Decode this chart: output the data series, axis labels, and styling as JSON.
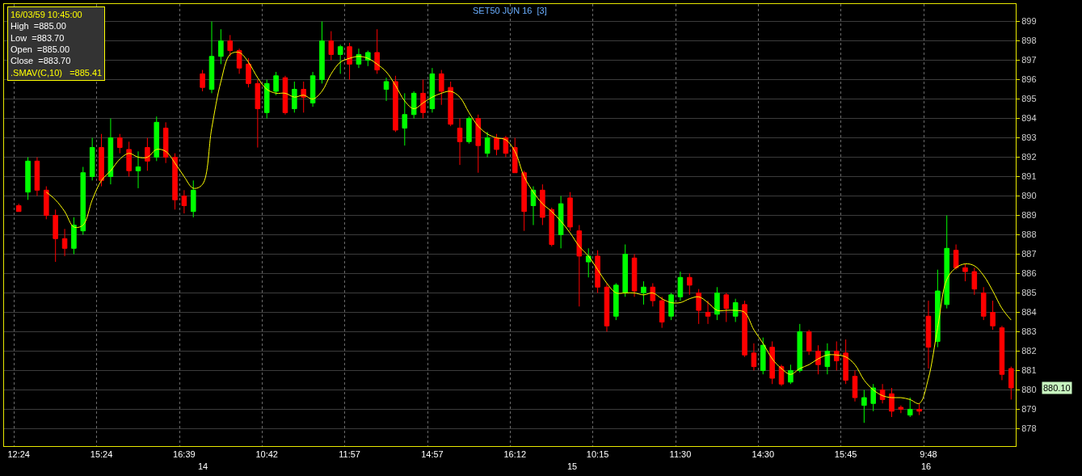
{
  "chart_data": {
    "type": "candlestick",
    "title": "SET50 JUN 16  [3]",
    "categories": [
      "12:24",
      null,
      null,
      null,
      null,
      null,
      null,
      null,
      null,
      "15:24",
      null,
      null,
      null,
      null,
      null,
      null,
      null,
      null,
      "16:39",
      null,
      null,
      null,
      null,
      null,
      null,
      null,
      null,
      "10:42",
      null,
      null,
      null,
      null,
      null,
      null,
      null,
      null,
      "11:57",
      null,
      null,
      null,
      null,
      null,
      null,
      null,
      null,
      "14:57",
      null,
      null,
      null,
      null,
      null,
      null,
      null,
      null,
      "16:12",
      null,
      null,
      null,
      null,
      null,
      null,
      null,
      null,
      "10:15",
      null,
      null,
      null,
      null,
      null,
      null,
      null,
      null,
      "11:30",
      null,
      null,
      null,
      null,
      null,
      null,
      null,
      null,
      "14:30",
      null,
      null,
      null,
      null,
      null,
      null,
      null,
      null,
      "15:45",
      null,
      null,
      null,
      null,
      null,
      null,
      null,
      null,
      "9:48",
      null,
      null,
      null,
      null,
      null,
      null,
      null,
      null,
      null
    ],
    "ohlc": [
      [
        889.5,
        889.6,
        889.2,
        889.2
      ],
      [
        890.2,
        892,
        889.8,
        891.8
      ],
      [
        891.8,
        892,
        890,
        890.3
      ],
      [
        890.3,
        890.5,
        888.8,
        889
      ],
      [
        889,
        889.3,
        886.6,
        887.8
      ],
      [
        887.8,
        888.3,
        886.9,
        887.3
      ],
      [
        887.3,
        888.9,
        887,
        888.5
      ],
      [
        888.2,
        891.5,
        888,
        891.2
      ],
      [
        891,
        893,
        890.8,
        892.5
      ],
      [
        892.5,
        893.2,
        890.5,
        890.8
      ],
      [
        891,
        894,
        890.6,
        893
      ],
      [
        893,
        893.2,
        892.2,
        892.5
      ],
      [
        892.4,
        892.8,
        891,
        891.3
      ],
      [
        891.3,
        892.3,
        890.4,
        891.5
      ],
      [
        892.5,
        893,
        891.3,
        891.8
      ],
      [
        892,
        894.1,
        891.8,
        893.8
      ],
      [
        893.5,
        893.8,
        891.7,
        892
      ],
      [
        892,
        892.2,
        889.3,
        889.8
      ],
      [
        890,
        890.3,
        889.1,
        889.5
      ],
      [
        889.2,
        890.8,
        888.9,
        890.3
      ],
      [
        896.3,
        896.5,
        895.4,
        895.6
      ],
      [
        895.5,
        899,
        895.3,
        897.2
      ],
      [
        897.2,
        898.6,
        896.8,
        898
      ],
      [
        898,
        898.3,
        897.2,
        897.5
      ],
      [
        897.5,
        897.6,
        896.3,
        896.6
      ],
      [
        896.8,
        897.1,
        895.6,
        895.8
      ],
      [
        895.8,
        896,
        892.5,
        894.5
      ],
      [
        894.3,
        896,
        894,
        895.8
      ],
      [
        895.4,
        896.4,
        895.2,
        896.2
      ],
      [
        896.1,
        896.2,
        894.2,
        894.3
      ],
      [
        894.5,
        895.9,
        894.3,
        895.5
      ],
      [
        895.5,
        895.9,
        894.3,
        895.1
      ],
      [
        894.8,
        896.4,
        894.6,
        896.2
      ],
      [
        896,
        899,
        895.8,
        898
      ],
      [
        898,
        898.5,
        897,
        897.3
      ],
      [
        897.3,
        897.8,
        896.3,
        897.7
      ],
      [
        897.7,
        897.9,
        896,
        896.8
      ],
      [
        896.8,
        897.6,
        896.6,
        897.3
      ],
      [
        897,
        897.5,
        896.7,
        897.4
      ],
      [
        897.4,
        898.6,
        896.3,
        896.5
      ],
      [
        895.5,
        896.1,
        894.9,
        895.9
      ],
      [
        895.9,
        896.2,
        893.3,
        893.4
      ],
      [
        893.5,
        895.3,
        892.6,
        894.2
      ],
      [
        894.2,
        895.4,
        894,
        895.3
      ],
      [
        895.3,
        896,
        894,
        894.3
      ],
      [
        894.5,
        896.6,
        894.3,
        896.3
      ],
      [
        896.3,
        896.5,
        894.7,
        895.4
      ],
      [
        895.6,
        895.9,
        893.6,
        893.7
      ],
      [
        893.5,
        894,
        891.6,
        892.8
      ],
      [
        892.8,
        894.1,
        892.7,
        894
      ],
      [
        894,
        894.2,
        891.2,
        892.6
      ],
      [
        892.2,
        893.3,
        892,
        893
      ],
      [
        893,
        893.2,
        892.1,
        892.4
      ],
      [
        893,
        893.1,
        892,
        892.2
      ],
      [
        892.5,
        893,
        891.2,
        891.2
      ],
      [
        891.2,
        891.3,
        888.2,
        889.2
      ],
      [
        889.5,
        890.5,
        888.5,
        890.3
      ],
      [
        890.3,
        890.6,
        888.5,
        888.9
      ],
      [
        889.3,
        889.4,
        887.4,
        887.5
      ],
      [
        888,
        890,
        887.3,
        889.6
      ],
      [
        889.9,
        890.2,
        888.2,
        888.4
      ],
      [
        888.2,
        888.5,
        884.3,
        886.9
      ],
      [
        886.6,
        887.3,
        885.8,
        886.9
      ],
      [
        886.9,
        887.2,
        885,
        885.3
      ],
      [
        885.3,
        885.5,
        883,
        883.3
      ],
      [
        883.8,
        885.5,
        883.6,
        885.4
      ],
      [
        885,
        887.5,
        884.8,
        887
      ],
      [
        886.8,
        887,
        884.8,
        885.1
      ],
      [
        885,
        885.6,
        884.4,
        885.3
      ],
      [
        885.3,
        885.5,
        884.3,
        884.6
      ],
      [
        884.6,
        884.8,
        883.2,
        883.5
      ],
      [
        883.8,
        885,
        883.6,
        884.9
      ],
      [
        884.8,
        886.1,
        884.6,
        885.8
      ],
      [
        885.8,
        886,
        884.9,
        885.4
      ],
      [
        885,
        885.2,
        883.4,
        884.1
      ],
      [
        884,
        884.6,
        883.4,
        883.8
      ],
      [
        883.9,
        885.3,
        883.6,
        885
      ],
      [
        884.9,
        885,
        883.5,
        884.2
      ],
      [
        883.8,
        884.7,
        883.5,
        884.5
      ],
      [
        884.4,
        884.6,
        881.7,
        881.8
      ],
      [
        881.9,
        882.4,
        881,
        881.2
      ],
      [
        881,
        882.7,
        880.8,
        882.3
      ],
      [
        882.2,
        882.5,
        880.3,
        880.6
      ],
      [
        881.2,
        881.3,
        880.2,
        880.3
      ],
      [
        880.4,
        881.3,
        880.3,
        881
      ],
      [
        881,
        883.4,
        880.9,
        883
      ],
      [
        883,
        883.1,
        881.8,
        882
      ],
      [
        882,
        882.3,
        880.8,
        881.3
      ],
      [
        881.2,
        882.4,
        880.8,
        882
      ],
      [
        882,
        882.5,
        881,
        881.5
      ],
      [
        881.9,
        882.6,
        880.3,
        880.5
      ],
      [
        880.7,
        881,
        879.4,
        879.6
      ],
      [
        879.2,
        880,
        878.3,
        879.6
      ],
      [
        879.3,
        880.3,
        878.9,
        880.1
      ],
      [
        880,
        880.3,
        879.3,
        879.5
      ],
      [
        879.8,
        880.1,
        878.6,
        878.9
      ],
      [
        879.1,
        879.2,
        878.8,
        879
      ],
      [
        878.7,
        879.6,
        878.6,
        879
      ],
      [
        879,
        879.3,
        878.7,
        878.9
      ],
      [
        883.8,
        884.6,
        881.1,
        882.2
      ],
      [
        882.5,
        886.2,
        882.2,
        885.1
      ],
      [
        884.4,
        889,
        884.2,
        887.3
      ],
      [
        887.2,
        887.5,
        886.2,
        886.3
      ],
      [
        886.3,
        886.5,
        885.6,
        886.1
      ],
      [
        886.1,
        886.3,
        884.9,
        885.2
      ],
      [
        885,
        885.3,
        883.6,
        883.8
      ],
      [
        884,
        884.6,
        883.1,
        883.3
      ],
      [
        883.2,
        883.3,
        880.5,
        880.8
      ],
      [
        881.1,
        881.2,
        879.5,
        880.1
      ]
    ],
    "colors": [
      "#ff0000",
      "#00ff00",
      "#ff0000",
      "#ff0000",
      "#ff0000",
      "#ff0000",
      "#00ff00",
      "#00ff00",
      "#00ff00",
      "#ff0000",
      "#00ff00",
      "#ff0000",
      "#ff0000",
      "#00ff00",
      "#ff0000",
      "#00ff00",
      "#ff0000",
      "#ff0000",
      "#ff0000",
      "#00ff00",
      "#ff0000",
      "#00ff00",
      "#00ff00",
      "#ff0000",
      "#ff0000",
      "#ff0000",
      "#ff0000",
      "#00ff00",
      "#00ff00",
      "#ff0000",
      "#00ff00",
      "#ff0000",
      "#00ff00",
      "#00ff00",
      "#ff0000",
      "#00ff00",
      "#ff0000",
      "#00ff00",
      "#00ff00",
      "#ff0000",
      "#00ff00",
      "#ff0000",
      "#00ff00",
      "#00ff00",
      "#ff0000",
      "#00ff00",
      "#ff0000",
      "#ff0000",
      "#ff0000",
      "#00ff00",
      "#ff0000",
      "#00ff00",
      "#ff0000",
      "#ff0000",
      "#ff0000",
      "#ff0000",
      "#00ff00",
      "#ff0000",
      "#ff0000",
      "#00ff00",
      "#ff0000",
      "#ff0000",
      "#00ff00",
      "#ff0000",
      "#ff0000",
      "#00ff00",
      "#00ff00",
      "#ff0000",
      "#00ff00",
      "#ff0000",
      "#ff0000",
      "#00ff00",
      "#00ff00",
      "#ff0000",
      "#ff0000",
      "#ff0000",
      "#00ff00",
      "#ff0000",
      "#00ff00",
      "#ff0000",
      "#ff0000",
      "#00ff00",
      "#ff0000",
      "#ff0000",
      "#00ff00",
      "#00ff00",
      "#ff0000",
      "#ff0000",
      "#00ff00",
      "#ff0000",
      "#ff0000",
      "#ff0000",
      "#00ff00",
      "#00ff00",
      "#ff0000",
      "#ff0000",
      "#ff0000",
      "#00ff00",
      "#ff0000",
      "#ff0000",
      "#00ff00",
      "#00ff00",
      "#ff0000",
      "#ff0000",
      "#ff0000",
      "#ff0000",
      "#ff0000",
      "#ff0000",
      "#ff0000"
    ],
    "series": [
      {
        "type": "line",
        "color": "#ffff00",
        "values": [
          null,
          null,
          null,
          890.2,
          889.8,
          889.2,
          888.4,
          888.5,
          889.8,
          890.8,
          891.3,
          891.9,
          892.2,
          892,
          892,
          892.4,
          892.3,
          891.7,
          891,
          890.4,
          890.6,
          893.5,
          895.9,
          897.3,
          897.4,
          896.9,
          896.1,
          895.5,
          895.3,
          895.3,
          895.1,
          895.2,
          895,
          895.4,
          896.3,
          896.9,
          897.1,
          897.2,
          897.1,
          896.8,
          896.4,
          895.7,
          894.9,
          894.5,
          894.8,
          895.1,
          895.3,
          895.4,
          895.1,
          894.3,
          893.6,
          893.2,
          893,
          892.9,
          892.3,
          891,
          890.2,
          889.6,
          889.2,
          888.7,
          888.1,
          887.4,
          886.9,
          886.2,
          885.5,
          885,
          885,
          885,
          884.9,
          885,
          884.7,
          884.5,
          884.5,
          884.7,
          884.8,
          884.5,
          884.1,
          884.1,
          884.1,
          884,
          883.1,
          882.4,
          881.6,
          881.1,
          880.8,
          881.1,
          881.3,
          881.6,
          881.8,
          881.8,
          881.7,
          881.3,
          880.5,
          880,
          879.7,
          879.6,
          879.6,
          879.5,
          879.3,
          880.6,
          883.2,
          885.7,
          886.3,
          886.5,
          886.4,
          885.9,
          885.1,
          884.2,
          883.6
        ]
      }
    ],
    "ylim": [
      877.1,
      899.9
    ],
    "yticks": [
      878,
      879,
      880,
      881,
      882,
      883,
      884,
      885,
      886,
      887,
      888,
      889,
      890,
      891,
      892,
      893,
      894,
      895,
      896,
      897,
      898,
      899
    ],
    "grid": true,
    "annotations": [
      "16/03/59 10:45:00",
      "High  =885.00",
      "Low  =883.70",
      "Open  =885.00",
      "Close  =883.70",
      ".SMAV(C,10)   =885.41",
      "880.10",
      "14",
      "15",
      "16"
    ]
  }
}
